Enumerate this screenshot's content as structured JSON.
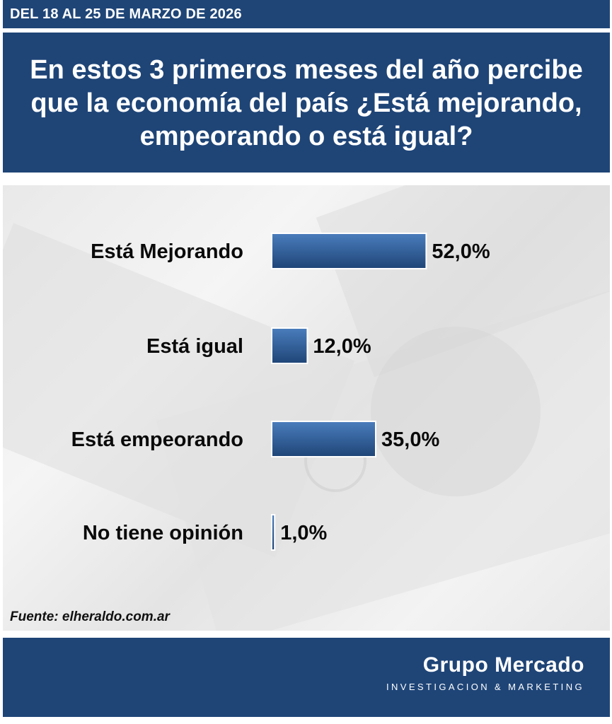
{
  "header": {
    "date_range": "DEL 18 AL 25 DE MARZO DE 2026",
    "question": "En estos 3 primeros meses del año percibe que la economía del país ¿Está mejorando, empeorando o está igual?"
  },
  "chart_data": {
    "type": "bar",
    "orientation": "horizontal",
    "categories": [
      "Está Mejorando",
      "Está igual",
      "Está empeorando",
      "No tiene opinión"
    ],
    "values": [
      52.0,
      12.0,
      35.0,
      1.0
    ],
    "value_labels": [
      "52,0%",
      "12,0%",
      "35,0%",
      "1,0%"
    ],
    "title": "",
    "xlabel": "",
    "ylabel": "",
    "grid": false,
    "legend": "none",
    "bar_color": "#3a6aa8"
  },
  "source": "Fuente: elheraldo.com.ar",
  "footer": {
    "brand_name": "Grupo Mercado",
    "brand_tagline": "INVESTIGACION & MARKETING"
  },
  "colors": {
    "navy": "#1f4577",
    "bar_top": "#4a7dbd",
    "bar_bottom": "#1f4577"
  }
}
